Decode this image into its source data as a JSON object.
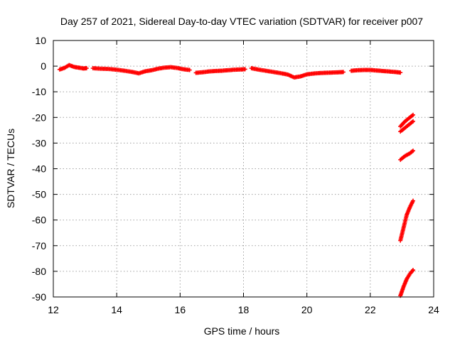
{
  "chart_data": {
    "type": "scatter",
    "title": "Day 257 of 2021, Sidereal Day-to-day VTEC variation (SDTVAR) for receiver p007",
    "xlabel": "GPS time / hours",
    "ylabel": "SDTVAR / TECUs",
    "xlim": [
      12,
      24
    ],
    "ylim": [
      -90,
      10
    ],
    "x_ticks": [
      12,
      14,
      16,
      18,
      20,
      22,
      24
    ],
    "y_ticks": [
      10,
      0,
      -10,
      -20,
      -30,
      -40,
      -50,
      -60,
      -70,
      -80,
      -90
    ],
    "grid": true,
    "marker": "+",
    "color": "#ff0000",
    "series": [
      {
        "x": [
          12.2,
          12.35,
          12.5,
          12.65,
          12.8,
          12.95,
          13.05
        ],
        "values": [
          -1.3,
          -0.7,
          0.4,
          -0.3,
          -0.6,
          -0.9,
          -0.8
        ]
      },
      {
        "x": [
          13.25,
          13.5,
          13.75,
          14.0,
          14.25,
          14.5,
          14.7,
          14.9,
          15.1,
          15.3,
          15.5,
          15.7,
          15.9,
          16.1,
          16.3
        ],
        "values": [
          -0.8,
          -1.0,
          -1.1,
          -1.4,
          -1.8,
          -2.3,
          -2.8,
          -2.0,
          -1.6,
          -1.0,
          -0.6,
          -0.4,
          -0.7,
          -1.2,
          -1.5
        ]
      },
      {
        "x": [
          16.5,
          16.7,
          16.9,
          17.1,
          17.3,
          17.5,
          17.7,
          17.9,
          18.05
        ],
        "values": [
          -2.6,
          -2.4,
          -2.1,
          -1.9,
          -1.8,
          -1.6,
          -1.4,
          -1.3,
          -1.2
        ]
      },
      {
        "x": [
          18.25,
          18.45,
          18.7,
          18.95,
          19.2,
          19.4,
          19.6,
          19.8,
          20.0,
          20.2,
          20.4,
          20.6,
          20.8,
          21.0,
          21.15
        ],
        "values": [
          -0.8,
          -1.3,
          -1.8,
          -2.3,
          -2.8,
          -3.3,
          -4.4,
          -4.0,
          -3.2,
          -2.9,
          -2.7,
          -2.6,
          -2.5,
          -2.4,
          -2.3
        ]
      },
      {
        "x": [
          21.4,
          21.6,
          21.8,
          22.0,
          22.2,
          22.4,
          22.6,
          22.8,
          22.95
        ],
        "values": [
          -1.8,
          -1.6,
          -1.5,
          -1.5,
          -1.7,
          -1.9,
          -2.1,
          -2.3,
          -2.5
        ]
      },
      {
        "x": [
          22.95,
          23.1,
          23.25,
          23.35
        ],
        "values": [
          -23.5,
          -21.5,
          -20.0,
          -19.0
        ]
      },
      {
        "x": [
          22.95,
          23.1,
          23.25,
          23.35
        ],
        "values": [
          -25.5,
          -24.0,
          -22.5,
          -21.5
        ]
      },
      {
        "x": [
          22.95,
          23.1,
          23.25,
          23.35
        ],
        "values": [
          -36.5,
          -35.0,
          -34.0,
          -33.0
        ]
      },
      {
        "x": [
          22.95,
          23.05,
          23.15,
          23.25,
          23.35
        ],
        "values": [
          -68.0,
          -63.0,
          -58.0,
          -55.0,
          -52.5
        ]
      },
      {
        "x": [
          22.95,
          23.05,
          23.15,
          23.25,
          23.35
        ],
        "values": [
          -89.5,
          -86.0,
          -83.0,
          -81.0,
          -79.5
        ]
      }
    ]
  }
}
